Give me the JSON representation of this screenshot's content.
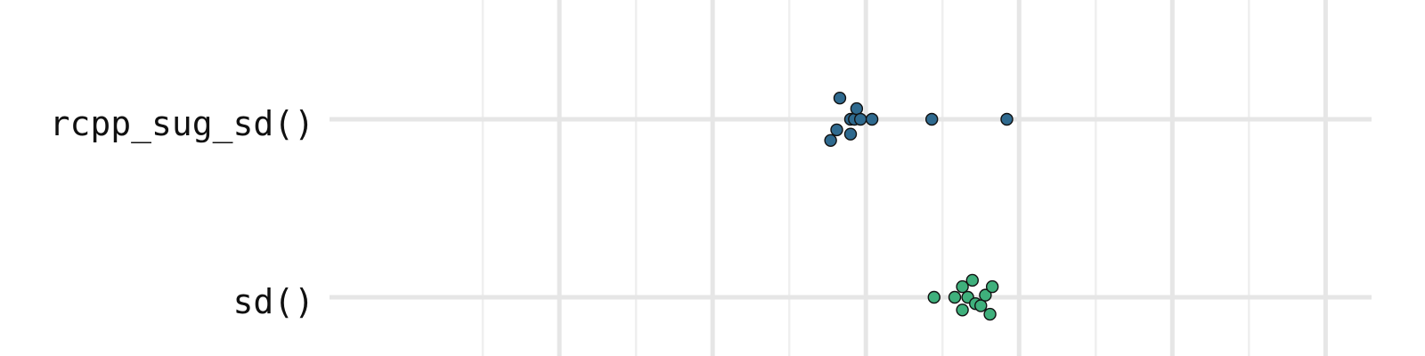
{
  "chart_data": {
    "type": "scatter",
    "title": "",
    "xlabel": "",
    "ylabel": "",
    "x_gridlines": [
      2,
      3,
      4,
      5,
      6,
      7,
      8,
      9,
      10,
      11,
      12,
      13
    ],
    "x_major_gridlines": [
      3,
      5,
      7,
      9,
      11,
      13
    ],
    "xlim": [
      0,
      13.6
    ],
    "categories": [
      "rcpp_sug_sd()",
      "sd()"
    ],
    "grid": true,
    "legend": "none",
    "series": [
      {
        "category": "rcpp_sug_sd()",
        "color": "#2f6a8f",
        "points": [
          {
            "x": 6.54,
            "jitter": -0.1
          },
          {
            "x": 6.62,
            "jitter": -0.05
          },
          {
            "x": 6.66,
            "jitter": 0.1
          },
          {
            "x": 6.8,
            "jitter": -0.07
          },
          {
            "x": 6.8,
            "jitter": 0.0
          },
          {
            "x": 6.85,
            "jitter": 0.0
          },
          {
            "x": 6.88,
            "jitter": 0.05
          },
          {
            "x": 6.93,
            "jitter": 0.0
          },
          {
            "x": 7.08,
            "jitter": 0.0
          },
          {
            "x": 7.86,
            "jitter": 0.0
          },
          {
            "x": 8.84,
            "jitter": 0.0
          }
        ]
      },
      {
        "category": "sd()",
        "color": "#3fb07c",
        "points": [
          {
            "x": 7.89,
            "jitter": 0.0
          },
          {
            "x": 8.16,
            "jitter": 0.0
          },
          {
            "x": 8.26,
            "jitter": -0.06
          },
          {
            "x": 8.26,
            "jitter": 0.05
          },
          {
            "x": 8.33,
            "jitter": 0.0
          },
          {
            "x": 8.39,
            "jitter": 0.08
          },
          {
            "x": 8.43,
            "jitter": -0.03
          },
          {
            "x": 8.5,
            "jitter": -0.04
          },
          {
            "x": 8.56,
            "jitter": 0.01
          },
          {
            "x": 8.62,
            "jitter": -0.08
          },
          {
            "x": 8.65,
            "jitter": 0.05
          }
        ]
      }
    ]
  }
}
